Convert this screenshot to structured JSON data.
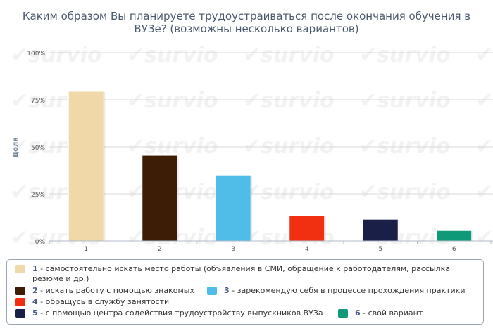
{
  "title_line1": "Каким образом Вы планируете трудоустраиваться после окончания обучения в",
  "title_line2": "ВУЗе? (возможны несколько вариантов)",
  "watermark_text": "survio",
  "chart_data": {
    "type": "bar",
    "title": "Каким образом Вы планируете трудоустраиваться после окончания обучения в ВУЗе? (возможны несколько вариантов)",
    "ylabel": "Доля",
    "xlabel": "",
    "categories": [
      "1",
      "2",
      "3",
      "4",
      "5",
      "6"
    ],
    "values": [
      79.5,
      45.5,
      35,
      13.5,
      11.5,
      5.5
    ],
    "ylim": [
      0,
      100
    ],
    "yticks": [
      "0%",
      "25%",
      "50%",
      "75%",
      "100%"
    ],
    "ytick_values": [
      0,
      25,
      50,
      75,
      100
    ],
    "colors": [
      "#f0d8a8",
      "#3d1d05",
      "#50bde8",
      "#f03010",
      "#1a1f48",
      "#0e9a78"
    ],
    "grid": true,
    "legend_position": "bottom"
  },
  "legend": [
    {
      "num": "1",
      "text": " - самостоятельно искать место работы (объявления в СМИ, обращение к работодателям, рассылка",
      "text2": "резюме и др.)",
      "color": "#f0d8a8"
    },
    {
      "num": "2",
      "text": " - искать работу с помощью знакомых",
      "color": "#3d1d05"
    },
    {
      "num": "3",
      "text": " - зарекомендую себя в процессе прохождения практики",
      "color": "#50bde8"
    },
    {
      "num": "4",
      "text": " - обращусь в службу занятости",
      "color": "#f03010"
    },
    {
      "num": "5",
      "text": " - с помощью центра содействия трудоустройству выпускников ВУЗа",
      "color": "#1a1f48"
    },
    {
      "num": "6",
      "text": " - свой вариант",
      "color": "#0e9a78"
    }
  ]
}
